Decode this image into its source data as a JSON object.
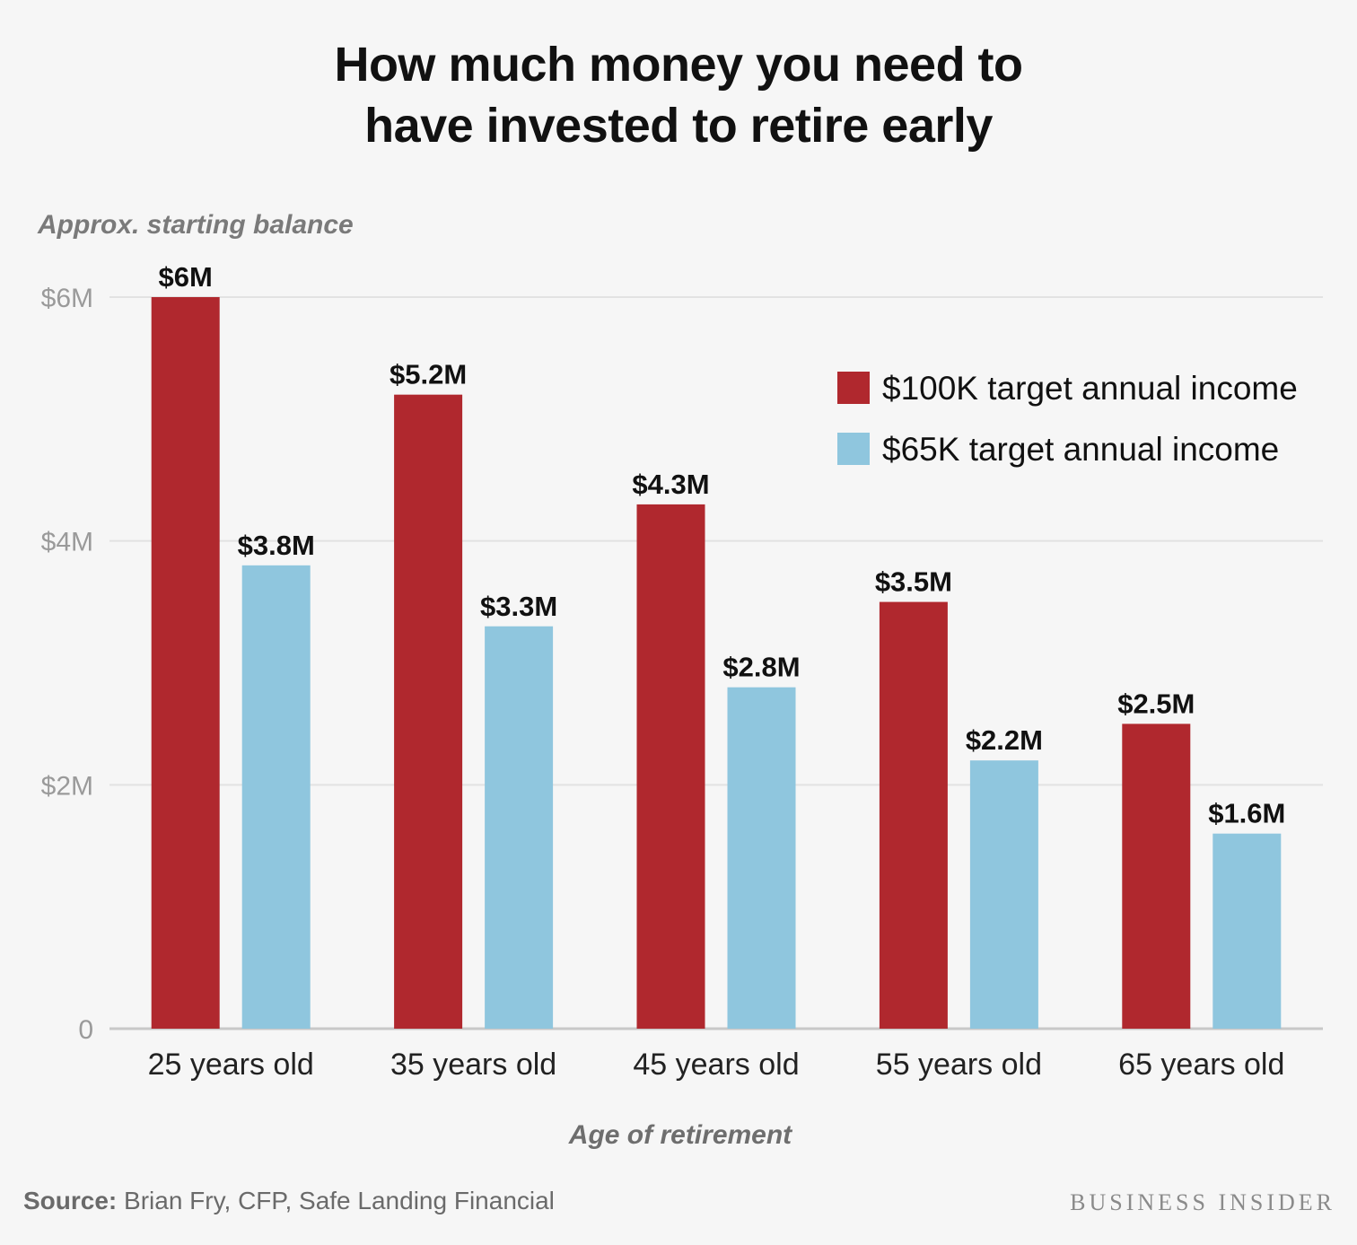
{
  "title_line1": "How much money you need to",
  "title_line2": "have invested to retire early",
  "source_prefix": "Source:",
  "source_text": "Brian Fry, CFP, Safe Landing Financial",
  "brand": "BUSINESS INSIDER",
  "colors": {
    "series1": "#b0282e",
    "series2": "#8fc6de",
    "grid": "#e2e2e2",
    "axis": "#c8c8c8"
  },
  "chart_data": {
    "type": "bar",
    "title": "How much money you need to have invested to retire early",
    "ylabel": "Approx. starting balance",
    "xlabel": "Age of retirement",
    "categories": [
      "25 years old",
      "35 years old",
      "45 years old",
      "55 years old",
      "65 years old"
    ],
    "series": [
      {
        "name": "$100K target annual income",
        "values": [
          6.0,
          5.2,
          4.3,
          3.5,
          2.5
        ],
        "labels": [
          "$6M",
          "$5.2M",
          "$4.3M",
          "$3.5M",
          "$2.5M"
        ]
      },
      {
        "name": "$65K target annual income",
        "values": [
          3.8,
          3.3,
          2.8,
          2.2,
          1.6
        ],
        "labels": [
          "$3.8M",
          "$3.3M",
          "$2.8M",
          "$2.2M",
          "$1.6M"
        ]
      }
    ],
    "yticks": [
      0,
      2,
      4,
      6
    ],
    "ytick_labels": [
      "0",
      "$2M",
      "$4M",
      "$6M"
    ],
    "ylim": [
      0,
      6
    ],
    "grid": true,
    "legend_position": "top-right"
  }
}
